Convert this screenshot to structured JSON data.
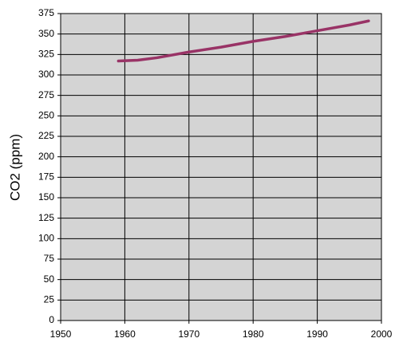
{
  "chart_data": {
    "type": "line",
    "y_label": "CO2 (ppm)",
    "x": [
      1959,
      1962,
      1965,
      1970,
      1975,
      1980,
      1985,
      1990,
      1995,
      1998
    ],
    "series": [
      {
        "color": "#993366",
        "values": [
          317,
          318,
          321,
          328,
          334,
          341,
          347,
          354,
          361,
          366
        ]
      }
    ],
    "xlim": [
      1950,
      2000
    ],
    "xticks": [
      1950,
      1960,
      1970,
      1980,
      1990,
      2000
    ],
    "ylim": [
      0,
      375
    ],
    "yticks": [
      0,
      25,
      50,
      75,
      100,
      125,
      150,
      175,
      200,
      225,
      250,
      275,
      300,
      325,
      350,
      375
    ],
    "grid": true
  }
}
